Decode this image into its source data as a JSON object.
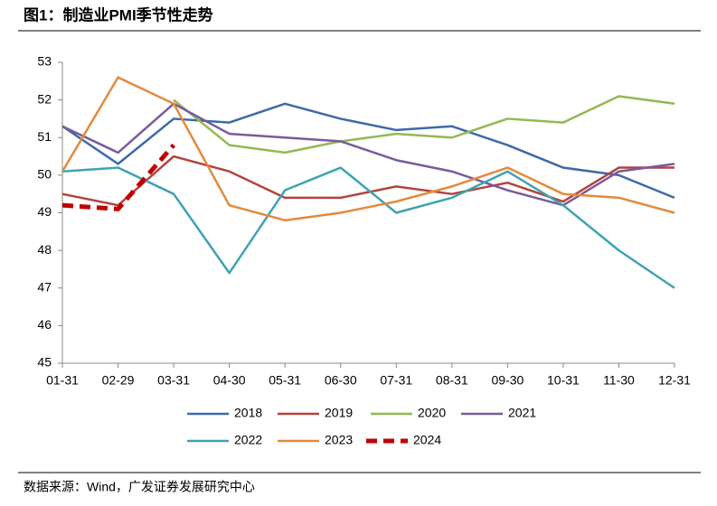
{
  "chart_data": {
    "type": "line",
    "title": "图1：制造业PMI季节性走势",
    "source": "数据来源：Wind，广发证券发展研究中心",
    "categories": [
      "01-31",
      "02-29",
      "03-31",
      "04-30",
      "05-31",
      "06-30",
      "07-31",
      "08-31",
      "09-30",
      "10-31",
      "11-30",
      "12-31"
    ],
    "ylim": [
      45,
      53
    ],
    "yticks": [
      45,
      46,
      47,
      48,
      49,
      50,
      51,
      52,
      53
    ],
    "grid": false,
    "legend": "bottom",
    "series": [
      {
        "name": "2018",
        "color": "#3d6aa8",
        "values": [
          51.3,
          50.3,
          51.5,
          51.4,
          51.9,
          51.5,
          51.2,
          51.3,
          50.8,
          50.2,
          50.0,
          49.4
        ]
      },
      {
        "name": "2019",
        "color": "#b0443f",
        "values": [
          49.5,
          49.2,
          50.5,
          50.1,
          49.4,
          49.4,
          49.7,
          49.5,
          49.8,
          49.3,
          50.2,
          50.2
        ]
      },
      {
        "name": "2020",
        "color": "#93b853",
        "values": [
          null,
          null,
          52.0,
          50.8,
          50.6,
          50.9,
          51.1,
          51.0,
          51.5,
          51.4,
          52.1,
          51.9
        ]
      },
      {
        "name": "2021",
        "color": "#7a5a9c",
        "values": [
          51.3,
          50.6,
          51.9,
          51.1,
          51.0,
          50.9,
          50.4,
          50.1,
          49.6,
          49.2,
          50.1,
          50.3
        ]
      },
      {
        "name": "2022",
        "color": "#3ea3b3",
        "values": [
          50.1,
          50.2,
          49.5,
          47.4,
          49.6,
          50.2,
          49.0,
          49.4,
          50.1,
          49.2,
          48.0,
          47.0
        ]
      },
      {
        "name": "2023",
        "color": "#e38a3c",
        "values": [
          50.1,
          52.6,
          51.9,
          49.2,
          48.8,
          49.0,
          49.3,
          49.7,
          50.2,
          49.5,
          49.4,
          49.0
        ]
      },
      {
        "name": "2024",
        "color": "#c00000",
        "dashed": true,
        "values": [
          49.2,
          49.1,
          50.8,
          null,
          null,
          null,
          null,
          null,
          null,
          null,
          null,
          null
        ]
      }
    ]
  }
}
